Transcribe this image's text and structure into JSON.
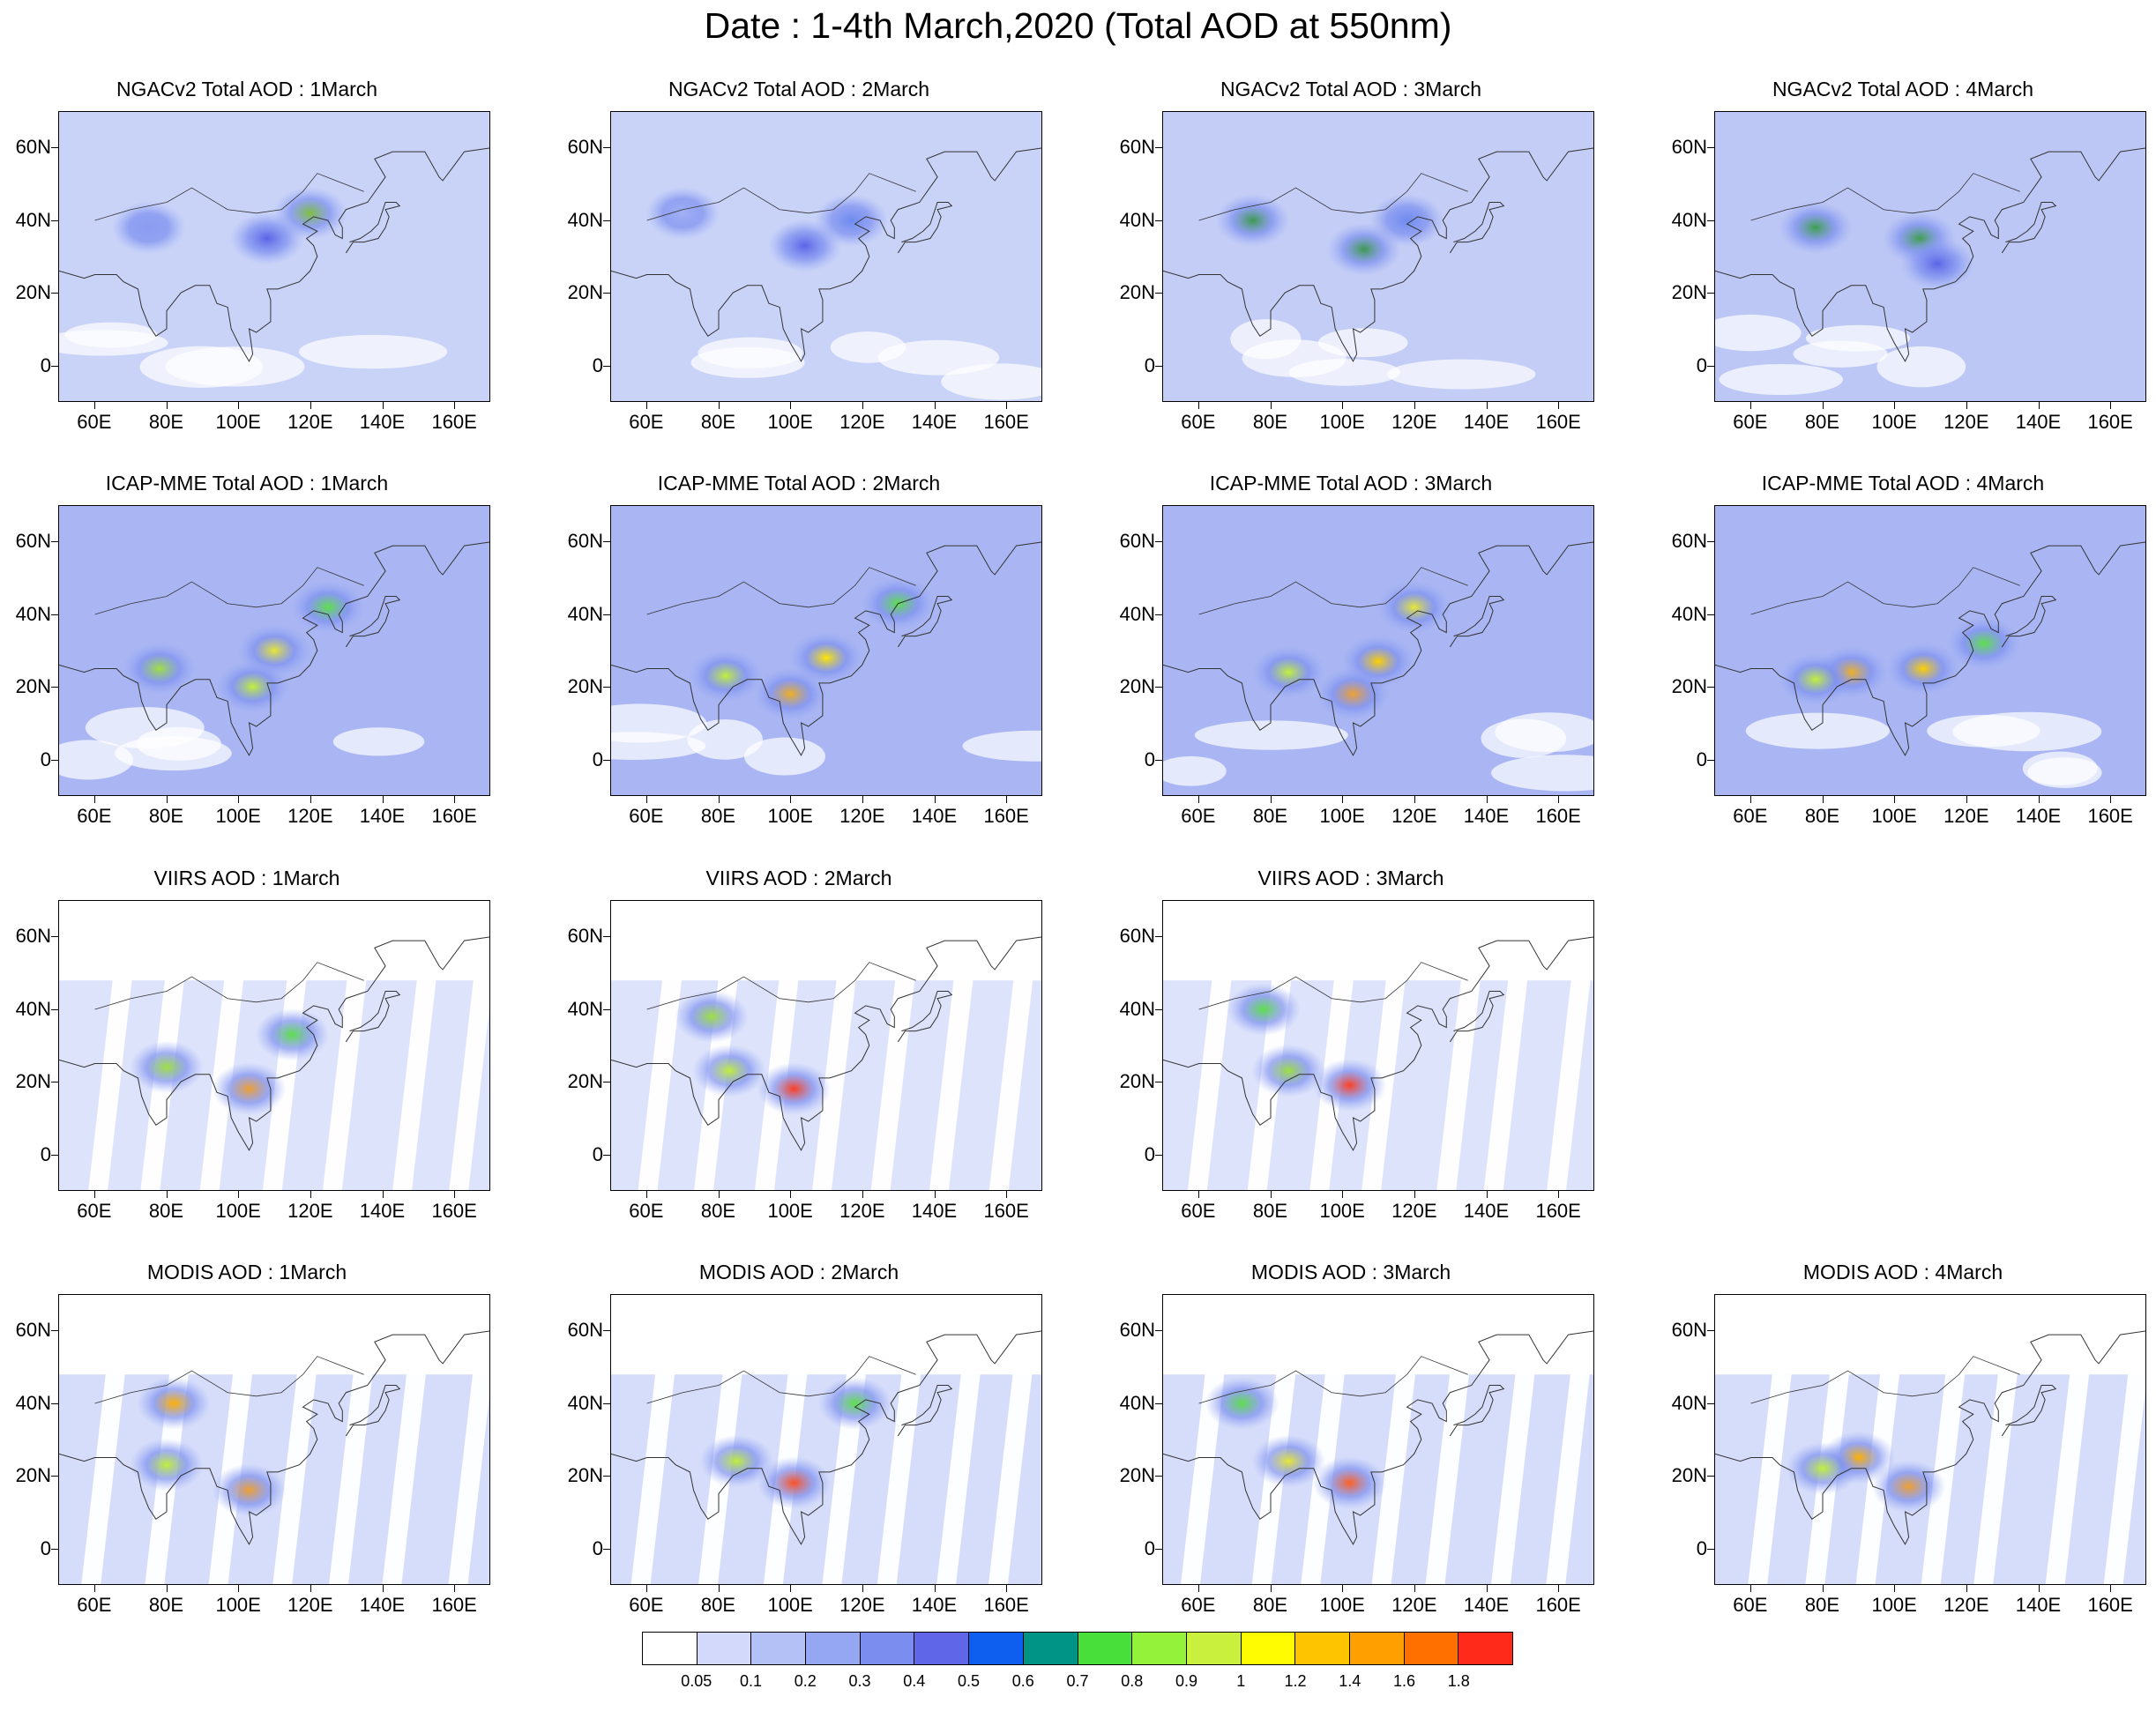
{
  "title": "Date : 1-4th March,2020 (Total AOD at 550nm)",
  "axes": {
    "lat_labels": [
      "60N",
      "40N",
      "20N",
      "0"
    ],
    "lon_labels": [
      "60E",
      "80E",
      "100E",
      "120E",
      "140E",
      "160E"
    ],
    "lat_range": [
      -10,
      70
    ],
    "lon_range": [
      50,
      170
    ]
  },
  "panels": [
    {
      "title": "NGACv2 Total AOD : 1March",
      "dataset": "NGACv2",
      "day": 1,
      "base": "#c9d3f8",
      "hotspots": [
        {
          "lon": 120,
          "lat": 42,
          "level": "#7fbf3f"
        },
        {
          "lon": 108,
          "lat": 35,
          "level": "#5a64e6"
        },
        {
          "lon": 75,
          "lat": 38,
          "level": "#8c9cf0"
        }
      ]
    },
    {
      "title": "NGACv2 Total AOD : 2March",
      "dataset": "NGACv2",
      "day": 2,
      "base": "#c9d3f8",
      "hotspots": [
        {
          "lon": 117,
          "lat": 40,
          "level": "#6e8cf0"
        },
        {
          "lon": 104,
          "lat": 33,
          "level": "#5a64e6"
        },
        {
          "lon": 70,
          "lat": 42,
          "level": "#a3b2f5"
        }
      ]
    },
    {
      "title": "NGACv2 Total AOD : 3March",
      "dataset": "NGACv2",
      "day": 3,
      "base": "#c3cdf6",
      "hotspots": [
        {
          "lon": 106,
          "lat": 32,
          "level": "#3e9a4e"
        },
        {
          "lon": 75,
          "lat": 40,
          "level": "#3e9a4e"
        },
        {
          "lon": 118,
          "lat": 40,
          "level": "#6e8cf0"
        }
      ]
    },
    {
      "title": "NGACv2 Total AOD : 4March",
      "dataset": "NGACv2",
      "day": 4,
      "base": "#bcc7f5",
      "hotspots": [
        {
          "lon": 107,
          "lat": 35,
          "level": "#3ea04e"
        },
        {
          "lon": 78,
          "lat": 38,
          "level": "#3ea04e"
        },
        {
          "lon": 112,
          "lat": 28,
          "level": "#5a64e6"
        }
      ]
    },
    {
      "title": "ICAP-MME Total AOD : 1March",
      "dataset": "ICAP-MME",
      "day": 1,
      "base": "#a9b6f3",
      "hotspots": [
        {
          "lon": 110,
          "lat": 30,
          "level": "#e8e834"
        },
        {
          "lon": 104,
          "lat": 20,
          "level": "#c2f03a"
        },
        {
          "lon": 78,
          "lat": 25,
          "level": "#9fe040"
        },
        {
          "lon": 125,
          "lat": 42,
          "level": "#5ee04a"
        }
      ]
    },
    {
      "title": "ICAP-MME Total AOD : 2March",
      "dataset": "ICAP-MME",
      "day": 2,
      "base": "#a9b6f3",
      "hotspots": [
        {
          "lon": 110,
          "lat": 28,
          "level": "#ffe600"
        },
        {
          "lon": 100,
          "lat": 18,
          "level": "#f0b020"
        },
        {
          "lon": 82,
          "lat": 23,
          "level": "#c2f03a"
        },
        {
          "lon": 130,
          "lat": 43,
          "level": "#5ee04a"
        }
      ]
    },
    {
      "title": "ICAP-MME Total AOD : 3March",
      "dataset": "ICAP-MME",
      "day": 3,
      "base": "#a9b6f3",
      "hotspots": [
        {
          "lon": 110,
          "lat": 27,
          "level": "#ffd000"
        },
        {
          "lon": 103,
          "lat": 18,
          "level": "#f0a030"
        },
        {
          "lon": 85,
          "lat": 24,
          "level": "#c2f03a"
        },
        {
          "lon": 120,
          "lat": 42,
          "level": "#e8e834"
        }
      ]
    },
    {
      "title": "ICAP-MME Total AOD : 4March",
      "dataset": "ICAP-MME",
      "day": 4,
      "base": "#a9b6f3",
      "hotspots": [
        {
          "lon": 108,
          "lat": 25,
          "level": "#ffd000"
        },
        {
          "lon": 88,
          "lat": 24,
          "level": "#f0b020"
        },
        {
          "lon": 78,
          "lat": 22,
          "level": "#c2f03a"
        },
        {
          "lon": 125,
          "lat": 32,
          "level": "#5ee04a"
        }
      ]
    },
    {
      "title": "VIIRS AOD : 1March",
      "dataset": "VIIRS",
      "day": 1,
      "base": "#dde3fb",
      "hotspots": [
        {
          "lon": 103,
          "lat": 18,
          "level": "#f0a030"
        },
        {
          "lon": 80,
          "lat": 24,
          "level": "#9fe040"
        },
        {
          "lon": 115,
          "lat": 33,
          "level": "#5ee04a"
        }
      ]
    },
    {
      "title": "VIIRS AOD : 2March",
      "dataset": "VIIRS",
      "day": 2,
      "base": "#dde3fb",
      "hotspots": [
        {
          "lon": 101,
          "lat": 18,
          "level": "#ff4020"
        },
        {
          "lon": 83,
          "lat": 23,
          "level": "#c2f03a"
        },
        {
          "lon": 78,
          "lat": 38,
          "level": "#9fe040"
        }
      ]
    },
    {
      "title": "VIIRS AOD : 3March",
      "dataset": "VIIRS",
      "day": 3,
      "base": "#dde3fb",
      "hotspots": [
        {
          "lon": 102,
          "lat": 19,
          "level": "#ff4020"
        },
        {
          "lon": 85,
          "lat": 23,
          "level": "#9fe040"
        },
        {
          "lon": 78,
          "lat": 40,
          "level": "#5ee04a"
        }
      ]
    },
    {
      "title": "MODIS AOD : 1March",
      "dataset": "MODIS",
      "day": 1,
      "base": "#d6ddfa",
      "hotspots": [
        {
          "lon": 103,
          "lat": 16,
          "level": "#f0a030"
        },
        {
          "lon": 80,
          "lat": 23,
          "level": "#c2f03a"
        },
        {
          "lon": 82,
          "lat": 40,
          "level": "#ffb000"
        }
      ]
    },
    {
      "title": "MODIS AOD : 2March",
      "dataset": "MODIS",
      "day": 2,
      "base": "#d6ddfa",
      "hotspots": [
        {
          "lon": 101,
          "lat": 18,
          "level": "#ff5020"
        },
        {
          "lon": 85,
          "lat": 24,
          "level": "#c2f03a"
        },
        {
          "lon": 118,
          "lat": 40,
          "level": "#5ee04a"
        }
      ]
    },
    {
      "title": "MODIS AOD : 3March",
      "dataset": "MODIS",
      "day": 3,
      "base": "#d6ddfa",
      "hotspots": [
        {
          "lon": 102,
          "lat": 18,
          "level": "#ff6020"
        },
        {
          "lon": 85,
          "lat": 24,
          "level": "#e8e834"
        },
        {
          "lon": 72,
          "lat": 40,
          "level": "#5ee04a"
        }
      ]
    },
    {
      "title": "MODIS AOD : 4March",
      "dataset": "MODIS",
      "day": 4,
      "base": "#d6ddfa",
      "hotspots": [
        {
          "lon": 104,
          "lat": 17,
          "level": "#f0a030"
        },
        {
          "lon": 90,
          "lat": 25,
          "level": "#ffb000"
        },
        {
          "lon": 80,
          "lat": 22,
          "level": "#c2f03a"
        }
      ]
    }
  ],
  "colorbar": {
    "colors": [
      "#ffffff",
      "#d2d9fa",
      "#b4c1f6",
      "#95a6f3",
      "#7b8ef0",
      "#5f67e8",
      "#0e5ff0",
      "#009487",
      "#48df3a",
      "#95f23a",
      "#c8f03c",
      "#fffb00",
      "#ffc400",
      "#ff9f00",
      "#ff7000",
      "#ff2a1a"
    ],
    "labels": [
      "0.05",
      "0.1",
      "0.2",
      "0.3",
      "0.4",
      "0.5",
      "0.6",
      "0.7",
      "0.8",
      "0.9",
      "1",
      "1.2",
      "1.4",
      "1.6",
      "1.8"
    ]
  }
}
